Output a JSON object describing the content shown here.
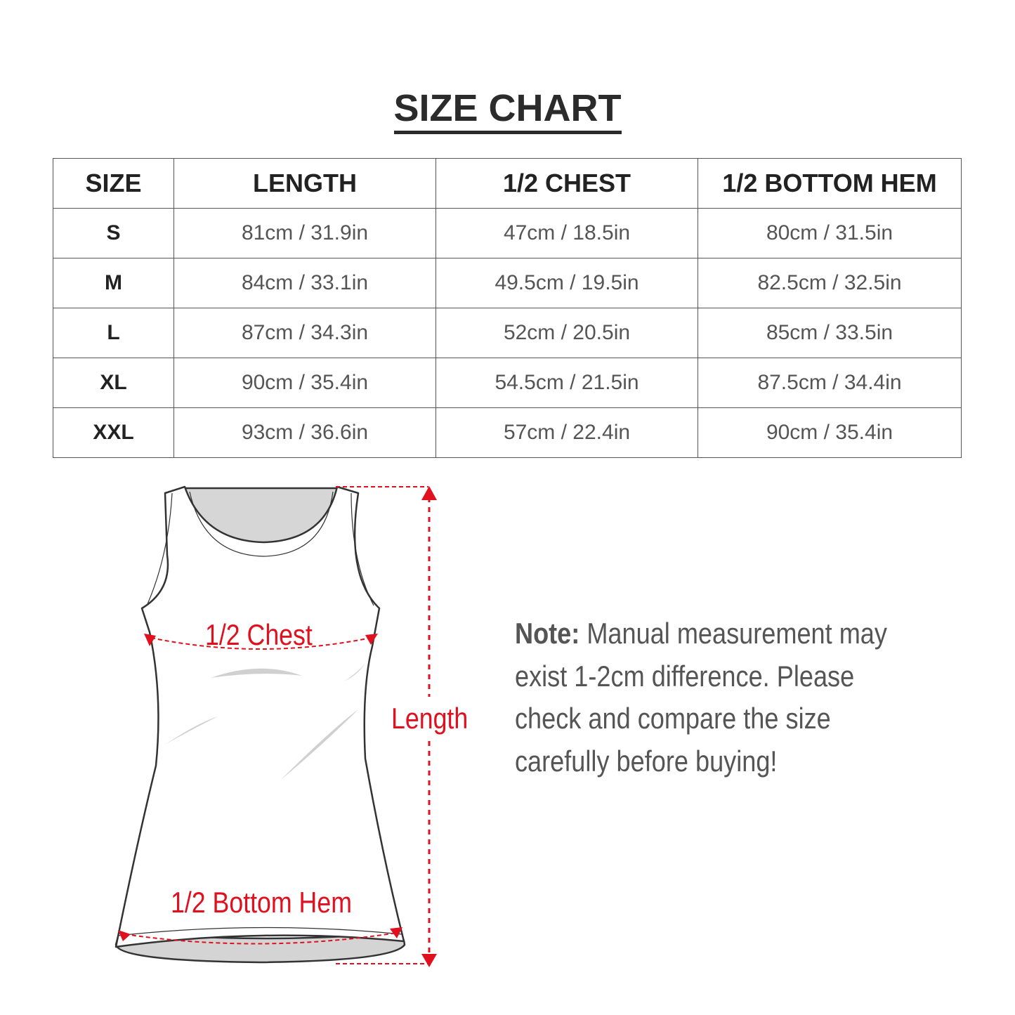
{
  "title": "SIZE CHART",
  "table": {
    "headers": [
      "SIZE",
      "LENGTH",
      "1/2 CHEST",
      "1/2 BOTTOM HEM"
    ],
    "rows": [
      [
        "S",
        "81cm / 31.9in",
        "47cm / 18.5in",
        "80cm / 31.5in"
      ],
      [
        "M",
        "84cm / 33.1in",
        "49.5cm / 19.5in",
        "82.5cm / 32.5in"
      ],
      [
        "L",
        "87cm / 34.3in",
        "52cm / 20.5in",
        "85cm / 33.5in"
      ],
      [
        "XL",
        "90cm / 35.4in",
        "54.5cm / 21.5in",
        "87.5cm / 34.4in"
      ],
      [
        "XXL",
        "93cm / 36.6in",
        "57cm / 22.4in",
        "90cm / 35.4in"
      ]
    ]
  },
  "diagram": {
    "chest_label": "1/2 Chest",
    "length_label": "Length",
    "hem_label": "1/2 Bottom Hem",
    "accent_color": "#e1101e"
  },
  "note": {
    "label": "Note:",
    "lines": [
      "Manual measurement may",
      "exist 1-2cm difference. Please",
      "check and compare the size",
      "carefully before buying!"
    ]
  }
}
